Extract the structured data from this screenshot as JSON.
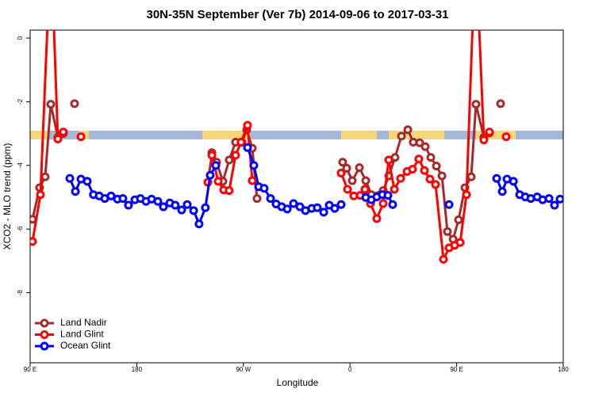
{
  "chart_data": {
    "type": "line",
    "title": "30N-35N September (Ver 7b)   2014-09-06 to 2017-03-31",
    "x_label": "Longitude",
    "y_label": "XCO2 - MLO trend (ppm)",
    "xlim": [
      90,
      540
    ],
    "ylim": [
      -10.2,
      0.25
    ],
    "xticks": [
      {
        "value": 90,
        "label": "90 E"
      },
      {
        "value": 180,
        "label": "180"
      },
      {
        "value": 270,
        "label": "90 W"
      },
      {
        "value": 360,
        "label": "0"
      },
      {
        "value": 450,
        "label": "90 E"
      },
      {
        "value": 540,
        "label": "180"
      }
    ],
    "yticks": [
      0,
      -2,
      -4,
      -6,
      -8
    ],
    "legend": "bottom-left",
    "series": [
      {
        "name": "Land Nadir",
        "color": "#a52a2a",
        "x": [
          92,
          98,
          102.7,
          107.4,
          113.4,
          118,
          null,
          127.5,
          null,
          243.4,
          247.4,
          252.7,
          258,
          263.4,
          268.8,
          272.8,
          277.5,
          281.5,
          null,
          353.8,
          357.2,
          361.9,
          367.9,
          373.3,
          378,
          388,
          392.7,
          398,
          403.4,
          408.8,
          413.4,
          418.8,
          423.5,
          428.2,
          432.9,
          437.6,
          442.2,
          447,
          451.6,
          457,
          462.3,
          466.3,
          473,
          477.7,
          null,
          487.1
        ],
        "values": [
          -5.69,
          -4.7,
          -4.36,
          -2.08,
          -3.12,
          -3.0,
          null,
          -2.06,
          null,
          -3.6,
          -3.9,
          -4.5,
          -3.83,
          -3.27,
          -3.27,
          -2.88,
          -3.46,
          -5.04,
          null,
          -3.9,
          -4.09,
          -4.48,
          -4.07,
          -4.48,
          -4.92,
          -4.79,
          -4.33,
          -3.75,
          -3.08,
          -2.88,
          -3.27,
          -3.29,
          -3.41,
          -3.75,
          -4.02,
          -4.33,
          -6.08,
          -6.32,
          -5.71,
          -4.7,
          -4.36,
          -2.08,
          -3.12,
          -2.98,
          null,
          -2.06
        ]
      },
      {
        "name": "Land Glint",
        "color": "#ff0000",
        "x": [
          92,
          98.7,
          107.5,
          113.4,
          118,
          null,
          132.9,
          null,
          240,
          243.4,
          248.7,
          253.4,
          258,
          263.4,
          268.1,
          273.5,
          277.5,
          null,
          352.5,
          357.9,
          363.2,
          368.6,
          372.6,
          377.3,
          382.6,
          388,
          392.7,
          397.4,
          402.7,
          408.1,
          412.8,
          418.1,
          422.8,
          427.5,
          432.2,
          438.9,
          443.6,
          448.3,
          453,
          458.3,
          466,
          473,
          477.7,
          null,
          491.8
        ],
        "values": [
          -6.39,
          -4.92,
          3,
          -3.17,
          -2.95,
          null,
          -3.1,
          null,
          -4.53,
          -3.68,
          -4.5,
          -4.77,
          -4.79,
          -3.68,
          -3.27,
          -2.74,
          -4.48,
          null,
          -4.24,
          -4.75,
          -4.96,
          -4.94,
          -4.75,
          -5.2,
          -5.67,
          -5.2,
          -3.83,
          -4.75,
          -4.41,
          -4.19,
          -4.12,
          -3.8,
          -4.16,
          -4.43,
          -4.6,
          -6.95,
          -6.59,
          -6.51,
          -6.42,
          -4.92,
          3,
          -3.2,
          -2.95,
          null,
          -3.1
        ]
      },
      {
        "name": "Ocean Glint",
        "color": "#0000ff",
        "x": [
          123.5,
          128.2,
          132.9,
          138.2,
          143.4,
          148.3,
          153,
          158.3,
          163.7,
          168.3,
          173,
          178.4,
          183.1,
          187.8,
          192.5,
          197.8,
          202.5,
          207.9,
          212.5,
          217.9,
          222.6,
          228,
          232.6,
          237.9,
          242,
          246.7,
          null,
          273.5,
          278.8,
          282.9,
          287.5,
          292.9,
          297.6,
          302.3,
          307,
          312.3,
          317.7,
          322.4,
          327.7,
          332.4,
          337.8,
          342.5,
          347.1,
          352.5,
          null,
          373.3,
          378,
          382.6,
          387.3,
          392,
          396,
          null,
          443.6,
          null,
          483.8,
          488.5,
          492.5,
          497.9,
          503.2,
          507.9,
          512.6,
          518,
          522.6,
          528,
          532.6,
          537.3
        ],
        "values": [
          -4.41,
          -4.82,
          -4.43,
          -4.5,
          -4.92,
          -4.96,
          -5.04,
          -4.96,
          -5.06,
          -5.04,
          -5.25,
          -5.08,
          -5.04,
          -5.13,
          -5.06,
          -5.13,
          -5.3,
          -5.18,
          -5.25,
          -5.4,
          -5.23,
          -5.42,
          -5.84,
          -5.33,
          -4.31,
          -4.0,
          null,
          -3.44,
          -4.0,
          -4.67,
          -4.72,
          -5.04,
          -5.21,
          -5.3,
          -5.37,
          -5.2,
          -5.3,
          -5.42,
          -5.35,
          -5.33,
          -5.47,
          -5.25,
          -5.35,
          -5.23,
          null,
          -5.01,
          -5.08,
          -4.99,
          -4.92,
          -4.94,
          -5.23,
          null,
          -5.23,
          null,
          -4.41,
          -4.82,
          -4.43,
          -4.5,
          -4.92,
          -4.99,
          -5.04,
          -4.99,
          -5.08,
          -5.04,
          -5.25,
          -5.06
        ]
      }
    ]
  }
}
